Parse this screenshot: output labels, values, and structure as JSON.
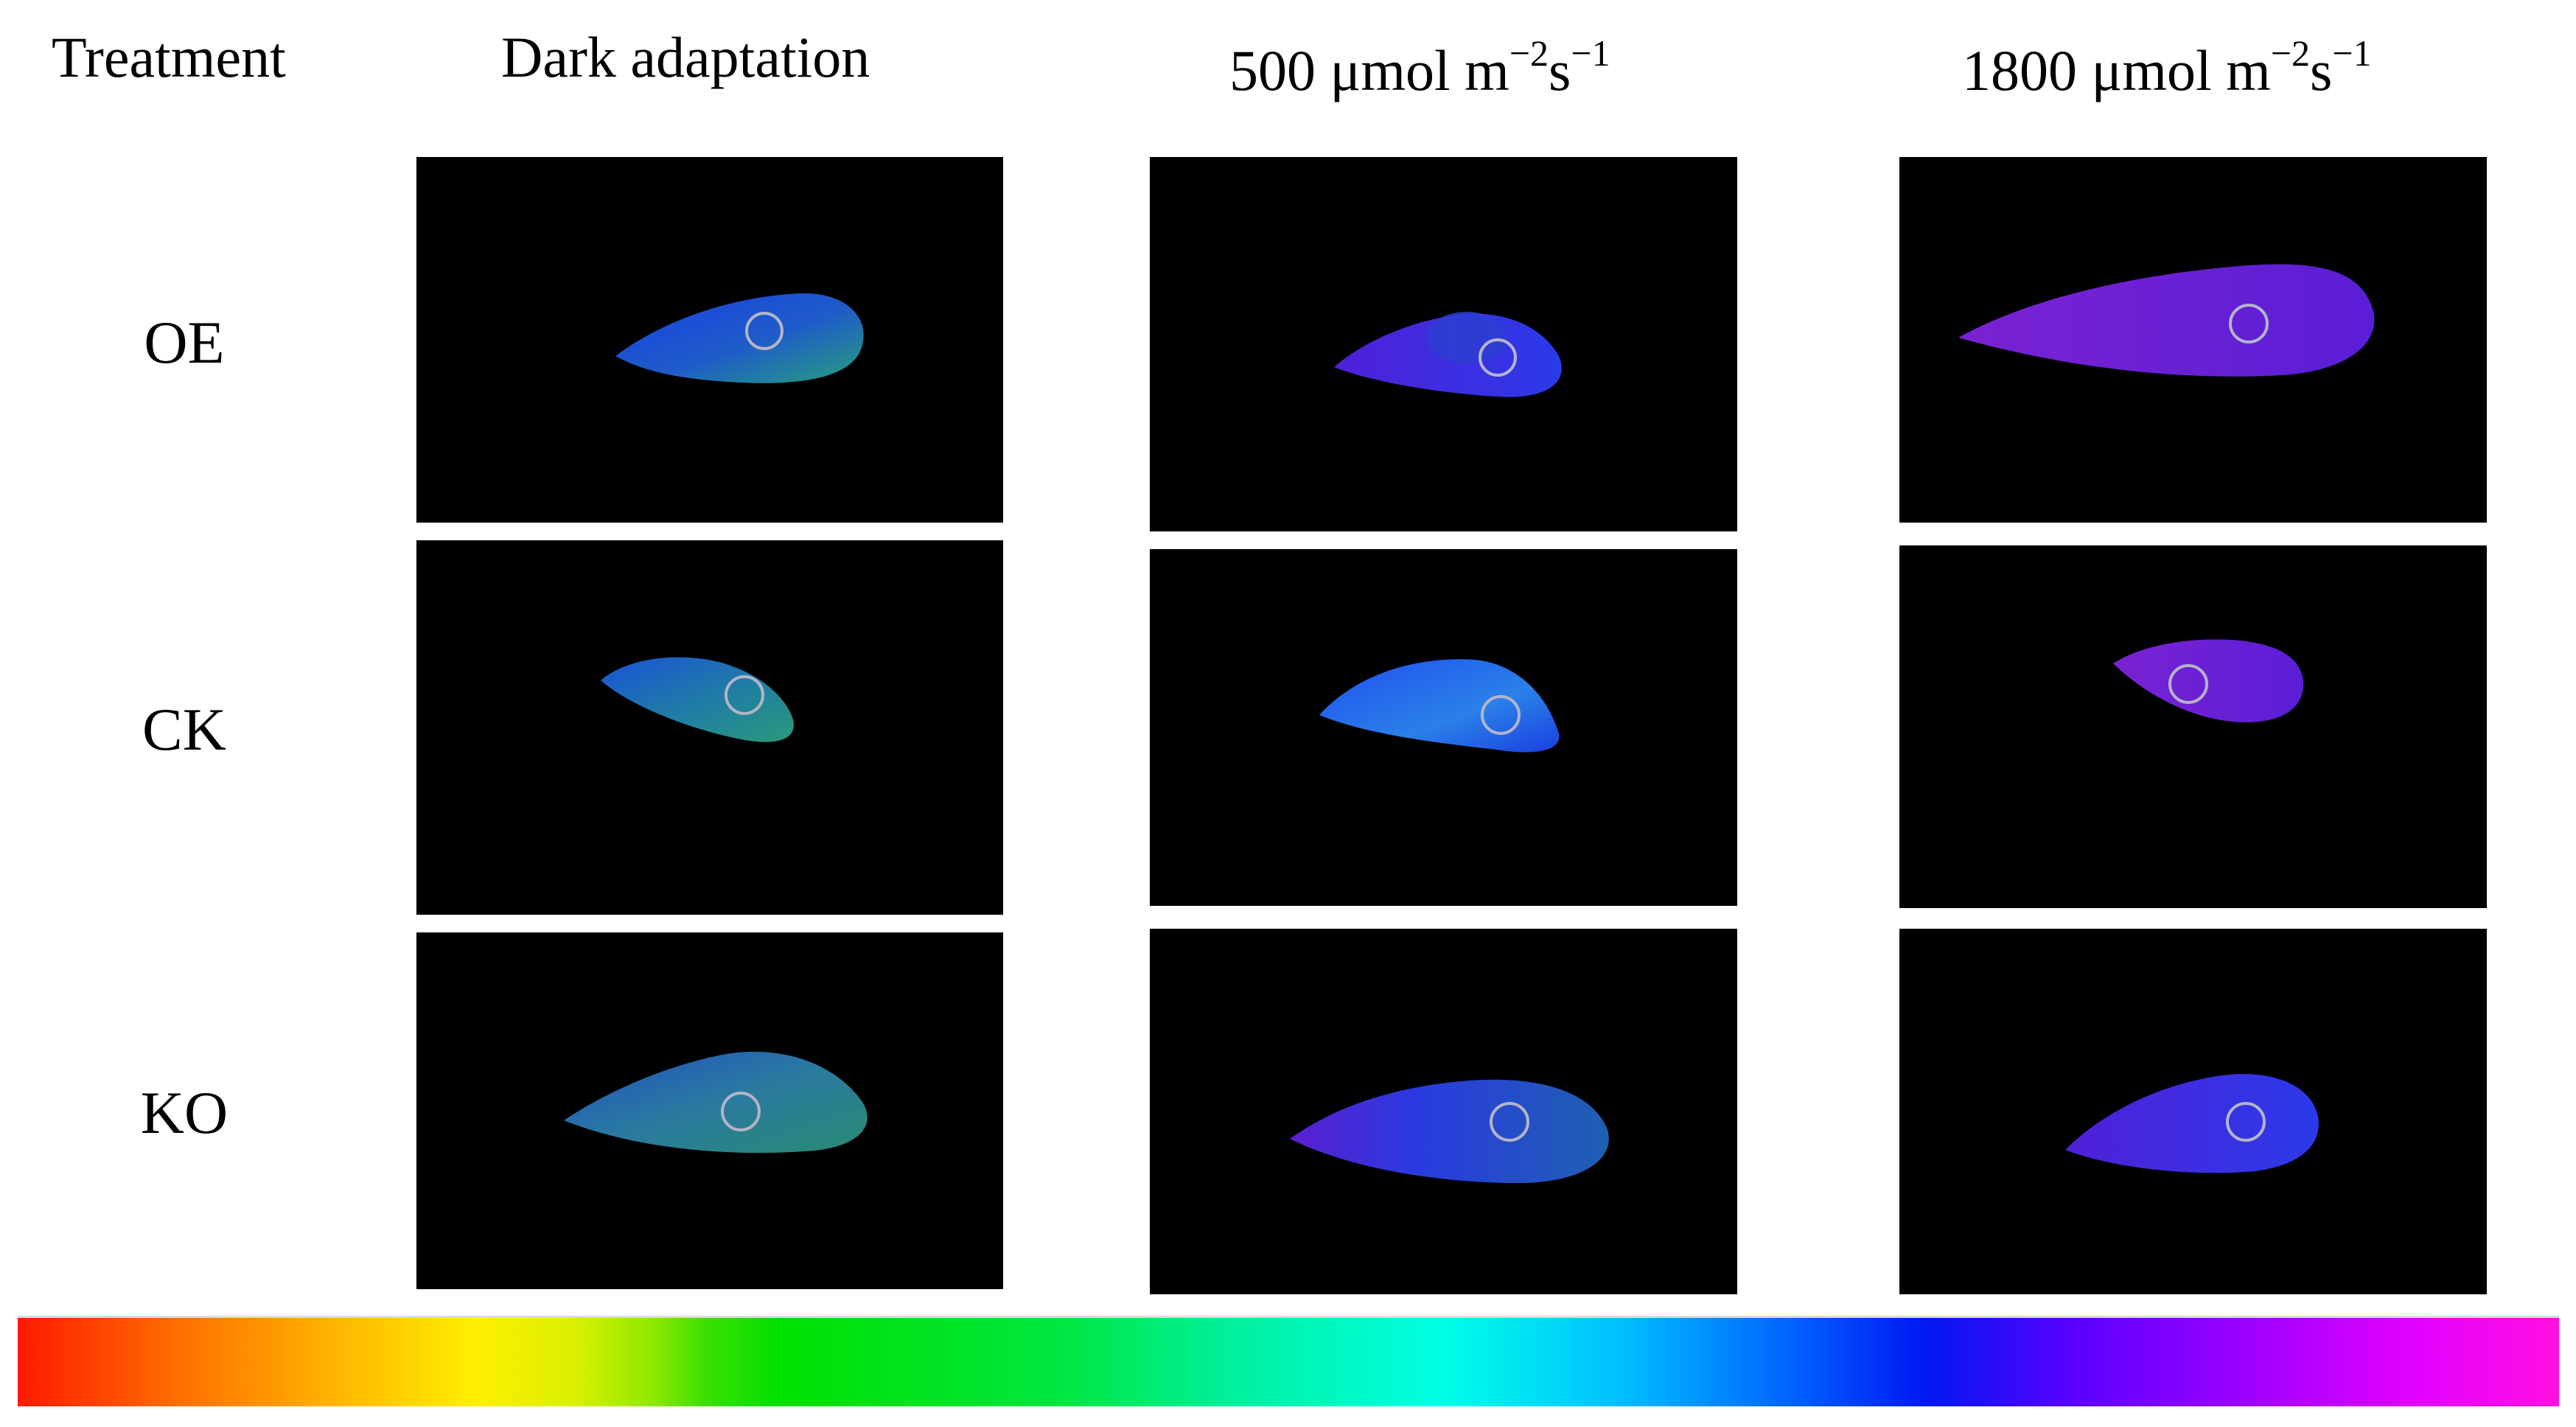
{
  "headers": {
    "treatment": "Treatment",
    "col1": "Dark adaptation",
    "col2_value": "500 μmol m",
    "col2_exp1": "−2",
    "col2_unit": "s",
    "col2_exp2": "−1",
    "col3_value": "1800 μmol m",
    "col3_exp1": "−2",
    "col3_unit": "s",
    "col3_exp2": "−1"
  },
  "rows": [
    "OE",
    "CK",
    "KO"
  ],
  "colors": {
    "background": "#ffffff",
    "panel": "#000000",
    "leaf_blue": "#1a3ee6",
    "leaf_teal": "#1f7aa8",
    "leaf_violet": "#5a1fd6",
    "leaf_purple": "#6a1ed0",
    "aoi_ring": "#b4b4c8"
  },
  "scale_bar": {
    "colors": [
      "red",
      "orange",
      "yellow",
      "green",
      "cyan",
      "blue",
      "violet",
      "magenta"
    ]
  }
}
